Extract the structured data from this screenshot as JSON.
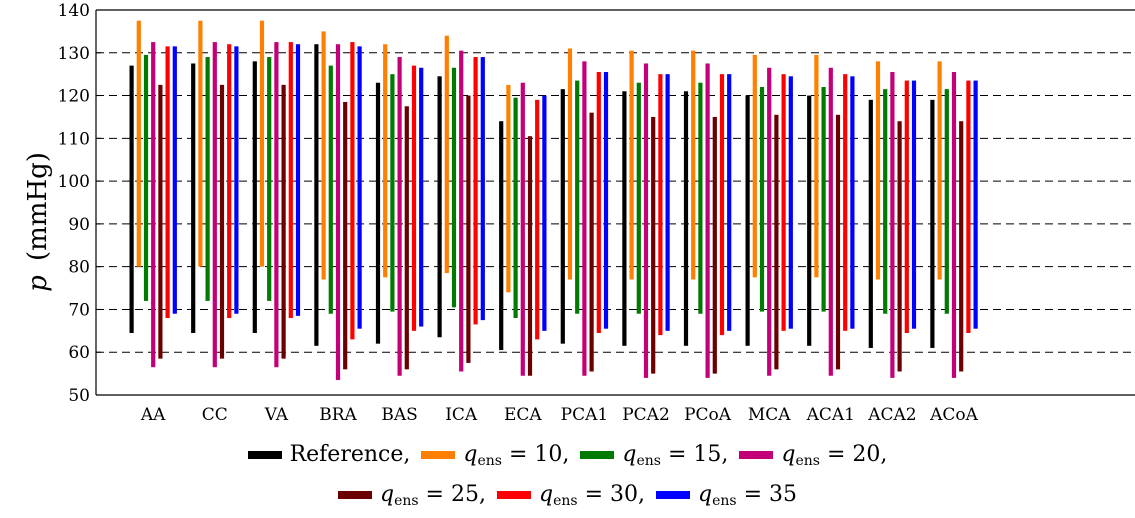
{
  "chart_data": {
    "type": "floating-bar",
    "ylabel_symbol": "p",
    "ylabel_unit": "(mmHg)",
    "ylim": [
      50,
      140
    ],
    "yticks": [
      50,
      60,
      70,
      80,
      90,
      100,
      110,
      120,
      130,
      140
    ],
    "grid": "horizontal dashed",
    "categories": [
      "AA",
      "CC",
      "VA",
      "BRA",
      "BAS",
      "ICA",
      "ECA",
      "PCA1",
      "PCA2",
      "PCoA",
      "MCA",
      "ACA1",
      "ACA2",
      "ACoA"
    ],
    "series": [
      {
        "name": "Reference",
        "color": "#000000",
        "low": [
          64.5,
          64.5,
          64.5,
          61.5,
          62,
          63.5,
          60.5,
          62,
          61.5,
          61.5,
          61.5,
          61.5,
          61,
          61
        ],
        "high": [
          127,
          127.5,
          128,
          132,
          123,
          124.5,
          114,
          121.5,
          121,
          121,
          120,
          120,
          119,
          119
        ]
      },
      {
        "name": "q_ens = 10",
        "q_value": "10",
        "color": "#ff8000",
        "low": [
          80,
          80,
          80,
          77,
          77.5,
          78.5,
          74,
          77,
          77,
          77,
          77.5,
          77.5,
          77,
          77
        ],
        "high": [
          137.5,
          137.5,
          137.5,
          135,
          132,
          134,
          122.5,
          131,
          130.5,
          130.5,
          129.5,
          129.5,
          128,
          128
        ]
      },
      {
        "name": "q_ens = 15",
        "q_value": "15",
        "color": "#007a00",
        "low": [
          72,
          72,
          72,
          69,
          69.5,
          70.5,
          68,
          69,
          69,
          69,
          69.5,
          69.5,
          69,
          69
        ],
        "high": [
          129.5,
          129,
          129,
          127,
          125,
          126.5,
          119.5,
          123.5,
          123,
          123,
          122,
          122,
          121.5,
          121.5
        ]
      },
      {
        "name": "q_ens = 20",
        "q_value": "20",
        "color": "#c40078",
        "low": [
          56.5,
          56.5,
          56.5,
          53.5,
          54.5,
          55.5,
          54.5,
          54.5,
          54,
          54,
          54.5,
          54.5,
          54,
          54
        ],
        "high": [
          132.5,
          132.5,
          132.5,
          132,
          129,
          130.5,
          123,
          128,
          127.5,
          127.5,
          126.5,
          126.5,
          125.5,
          125.5
        ]
      },
      {
        "name": "q_ens = 25",
        "q_value": "25",
        "color": "#6b0000",
        "low": [
          58.5,
          58.5,
          58.5,
          56,
          56,
          57.5,
          54.5,
          55.5,
          55,
          55,
          56,
          56,
          55.5,
          55.5
        ],
        "high": [
          122.5,
          122.5,
          122.5,
          118.5,
          117.5,
          120,
          110.5,
          116,
          115,
          115,
          115.5,
          115.5,
          114,
          114
        ]
      },
      {
        "name": "q_ens = 30",
        "q_value": "30",
        "color": "#ff0000",
        "low": [
          68,
          68,
          68,
          63,
          65,
          66.5,
          63,
          64.5,
          64,
          64,
          65,
          65,
          64.5,
          64.5
        ],
        "high": [
          131.5,
          132,
          132.5,
          132.5,
          127,
          129,
          119,
          125.5,
          125,
          125,
          125,
          125,
          123.5,
          123.5
        ]
      },
      {
        "name": "q_ens = 35",
        "q_value": "35",
        "color": "#0000ff",
        "low": [
          69,
          69,
          68.5,
          65.5,
          66,
          67.5,
          65,
          65.5,
          65,
          65,
          65.5,
          65.5,
          65.5,
          65.5
        ],
        "high": [
          131.5,
          131.5,
          132,
          131.5,
          126.5,
          129,
          120,
          125.5,
          125,
          125,
          124.5,
          124.5,
          123.5,
          123.5
        ]
      }
    ]
  },
  "legend": {
    "reference_label": "Reference,",
    "q_symbol": "q",
    "q_subscript": "ens",
    "separator": ","
  }
}
